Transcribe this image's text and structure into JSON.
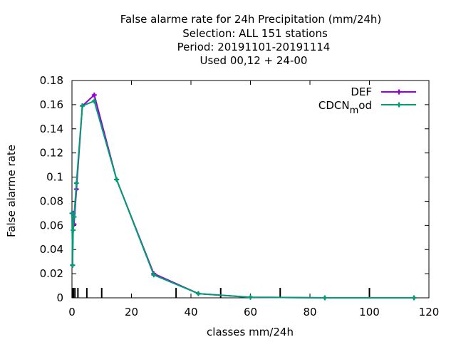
{
  "chart_data": {
    "type": "line",
    "title_lines": [
      "False alarme rate  for 24h Precipitation (mm/24h)",
      "Selection: ALL    151 stations",
      "Period: 20191101-20191114",
      "Used  00,12  + 24-00"
    ],
    "xlabel": "classes mm/24h",
    "ylabel": "False alarme rate",
    "xlim": [
      0,
      120
    ],
    "ylim": [
      0,
      0.18
    ],
    "x_ticks": [
      0,
      20,
      40,
      60,
      80,
      100,
      120
    ],
    "x_tick_labels": [
      "0",
      "20",
      "40",
      "60",
      "80",
      "100",
      "120"
    ],
    "y_ticks": [
      0,
      0.02,
      0.04,
      0.06,
      0.08,
      0.1,
      0.12,
      0.14,
      0.16,
      0.18
    ],
    "y_tick_labels": [
      "0",
      "0.02",
      "0.04",
      "0.06",
      "0.08",
      "0.1",
      "0.12",
      "0.14",
      "0.16",
      "0.18"
    ],
    "class_markers_x": [
      0.1,
      0.5,
      1,
      2,
      5,
      10,
      35,
      50,
      70,
      100
    ],
    "legend_position": "top-right",
    "grid": false,
    "series": [
      {
        "name": "DEF",
        "name_sub": "",
        "color": "#9400d3",
        "marker": "plus",
        "x": [
          0.05,
          0.2,
          0.4,
          0.7,
          1.5,
          3.5,
          7.5,
          15,
          27.5,
          42.5,
          60,
          85,
          115
        ],
        "y": [
          0.07,
          0.027,
          0.07,
          0.061,
          0.09,
          0.159,
          0.168,
          0.098,
          0.02,
          0.0035,
          0.0005,
          0.0,
          0.0
        ]
      },
      {
        "name": "CDCN",
        "name_sub": "m",
        "name_tail": "od",
        "color": "#009e73",
        "marker": "plus",
        "x": [
          0.05,
          0.2,
          0.4,
          0.7,
          1.5,
          3.5,
          7.5,
          15,
          27.5,
          42.5,
          60,
          85,
          115
        ],
        "y": [
          0.07,
          0.027,
          0.056,
          0.067,
          0.095,
          0.159,
          0.163,
          0.098,
          0.019,
          0.0035,
          0.0005,
          0.0,
          0.0
        ]
      }
    ]
  }
}
